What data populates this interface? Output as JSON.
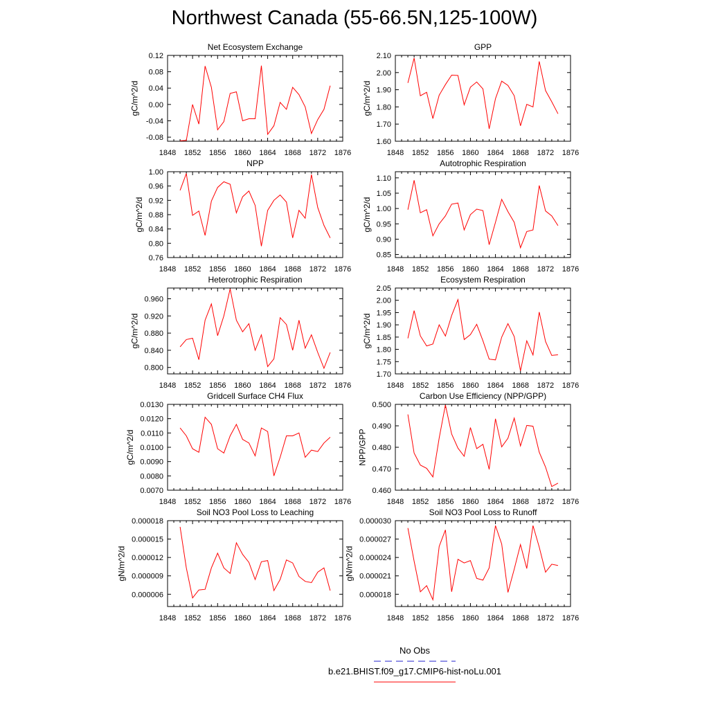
{
  "figure": {
    "title": "Northwest Canada (55-66.5N,125-100W)",
    "legend": [
      {
        "label": "No Obs",
        "color": "#2222cc",
        "dashed": true
      },
      {
        "label": "b.e21.BHIST.f09_g17.CMIP6-hist-noLu.001",
        "color": "#ff0000",
        "dashed": false
      }
    ]
  },
  "chart_data": [
    {
      "type": "line",
      "title": "Net Ecosystem Exchange",
      "ylabel": "gC/m^2/d",
      "xlim": [
        1848,
        1876
      ],
      "xticks": [
        "1848",
        "1852",
        "1856",
        "1860",
        "1864",
        "1868",
        "1872",
        "1876"
      ],
      "ylim": [
        -0.09,
        0.12
      ],
      "yticks": [
        "-0.08",
        "-0.04",
        "0.00",
        "0.04",
        "0.08",
        "0.12"
      ],
      "series": [
        {
          "color": "#ff0000",
          "x": [
            1850,
            1851,
            1852,
            1853,
            1854,
            1855,
            1856,
            1857,
            1858,
            1859,
            1860,
            1861,
            1862,
            1863,
            1864,
            1865,
            1866,
            1867,
            1868,
            1869,
            1870,
            1871,
            1872,
            1873,
            1874
          ],
          "y": [
            -0.089,
            -0.088,
            0.0,
            -0.048,
            0.094,
            0.042,
            -0.062,
            -0.042,
            0.027,
            0.031,
            -0.04,
            -0.035,
            -0.035,
            0.095,
            -0.073,
            -0.052,
            0.005,
            -0.012,
            0.042,
            0.024,
            -0.006,
            -0.071,
            -0.037,
            -0.012,
            0.046
          ]
        }
      ]
    },
    {
      "type": "line",
      "title": "GPP",
      "ylabel": "gC/m^2/d",
      "xlim": [
        1848,
        1876
      ],
      "xticks": [
        "1848",
        "1852",
        "1856",
        "1860",
        "1864",
        "1868",
        "1872",
        "1876"
      ],
      "ylim": [
        1.6,
        2.1
      ],
      "yticks": [
        "1.60",
        "1.70",
        "1.80",
        "1.90",
        "2.00",
        "2.10"
      ],
      "series": [
        {
          "color": "#ff0000",
          "x": [
            1850,
            1851,
            1852,
            1853,
            1854,
            1855,
            1856,
            1857,
            1858,
            1859,
            1860,
            1861,
            1862,
            1863,
            1864,
            1865,
            1866,
            1867,
            1868,
            1869,
            1870,
            1871,
            1872,
            1873,
            1874
          ],
          "y": [
            1.94,
            2.085,
            1.865,
            1.885,
            1.732,
            1.868,
            1.93,
            1.985,
            1.983,
            1.812,
            1.915,
            1.945,
            1.905,
            1.672,
            1.848,
            1.95,
            1.925,
            1.865,
            1.69,
            1.815,
            1.8,
            2.065,
            1.895,
            1.83,
            1.76
          ]
        }
      ]
    },
    {
      "type": "line",
      "title": "NPP",
      "ylabel": "gC/m^2/d",
      "xlim": [
        1848,
        1876
      ],
      "xticks": [
        "1848",
        "1852",
        "1856",
        "1860",
        "1864",
        "1868",
        "1872",
        "1876"
      ],
      "ylim": [
        0.76,
        1.0
      ],
      "yticks": [
        "0.76",
        "0.80",
        "0.84",
        "0.88",
        "0.92",
        "0.96",
        "1.00"
      ],
      "series": [
        {
          "color": "#ff0000",
          "x": [
            1850,
            1851,
            1852,
            1853,
            1854,
            1855,
            1856,
            1857,
            1858,
            1859,
            1860,
            1861,
            1862,
            1863,
            1864,
            1865,
            1866,
            1867,
            1868,
            1869,
            1870,
            1871,
            1872,
            1873,
            1874
          ],
          "y": [
            0.948,
            0.995,
            0.878,
            0.89,
            0.822,
            0.918,
            0.956,
            0.972,
            0.965,
            0.885,
            0.93,
            0.946,
            0.906,
            0.792,
            0.892,
            0.92,
            0.935,
            0.915,
            0.815,
            0.892,
            0.87,
            0.992,
            0.9,
            0.85,
            0.815
          ]
        }
      ]
    },
    {
      "type": "line",
      "title": "Autotrophic Respiration",
      "ylabel": "gC/m^2/d",
      "xlim": [
        1848,
        1876
      ],
      "xticks": [
        "1848",
        "1852",
        "1856",
        "1860",
        "1864",
        "1868",
        "1872",
        "1876"
      ],
      "ylim": [
        0.84,
        1.12
      ],
      "yticks": [
        "0.85",
        "0.90",
        "0.95",
        "1.00",
        "1.05",
        "1.10"
      ],
      "series": [
        {
          "color": "#ff0000",
          "x": [
            1850,
            1851,
            1852,
            1853,
            1854,
            1855,
            1856,
            1857,
            1858,
            1859,
            1860,
            1861,
            1862,
            1863,
            1864,
            1865,
            1866,
            1867,
            1868,
            1869,
            1870,
            1871,
            1872,
            1873,
            1874
          ],
          "y": [
            0.996,
            1.092,
            0.986,
            0.996,
            0.911,
            0.95,
            0.976,
            1.014,
            1.018,
            0.93,
            0.98,
            0.998,
            0.993,
            0.882,
            0.955,
            1.03,
            0.99,
            0.955,
            0.872,
            0.925,
            0.93,
            1.075,
            0.992,
            0.976,
            0.944
          ]
        }
      ]
    },
    {
      "type": "line",
      "title": "Heterotrophic Respiration",
      "ylabel": "gC/m^2/d",
      "xlim": [
        1848,
        1876
      ],
      "xticks": [
        "1848",
        "1852",
        "1856",
        "1860",
        "1864",
        "1868",
        "1872",
        "1876"
      ],
      "ylim": [
        0.785,
        0.985
      ],
      "yticks": [
        "0.800",
        "0.840",
        "0.880",
        "0.920",
        "0.960"
      ],
      "series": [
        {
          "color": "#ff0000",
          "x": [
            1850,
            1851,
            1852,
            1853,
            1854,
            1855,
            1856,
            1857,
            1858,
            1859,
            1860,
            1861,
            1862,
            1863,
            1864,
            1865,
            1866,
            1867,
            1868,
            1869,
            1870,
            1871,
            1872,
            1873,
            1874
          ],
          "y": [
            0.848,
            0.865,
            0.868,
            0.818,
            0.91,
            0.948,
            0.874,
            0.92,
            0.983,
            0.91,
            0.883,
            0.902,
            0.84,
            0.876,
            0.802,
            0.82,
            0.916,
            0.9,
            0.84,
            0.91,
            0.845,
            0.876,
            0.835,
            0.798,
            0.835
          ]
        }
      ]
    },
    {
      "type": "line",
      "title": "Ecosystem Respiration",
      "ylabel": "gC/m^2/d",
      "xlim": [
        1848,
        1876
      ],
      "xticks": [
        "1848",
        "1852",
        "1856",
        "1860",
        "1864",
        "1868",
        "1872",
        "1876"
      ],
      "ylim": [
        1.7,
        2.05
      ],
      "yticks": [
        "1.70",
        "1.75",
        "1.80",
        "1.85",
        "1.90",
        "1.95",
        "2.00",
        "2.05"
      ],
      "series": [
        {
          "color": "#ff0000",
          "x": [
            1850,
            1851,
            1852,
            1853,
            1854,
            1855,
            1856,
            1857,
            1858,
            1859,
            1860,
            1861,
            1862,
            1863,
            1864,
            1865,
            1866,
            1867,
            1868,
            1869,
            1870,
            1871,
            1872,
            1873,
            1874
          ],
          "y": [
            1.845,
            1.958,
            1.855,
            1.814,
            1.822,
            1.9,
            1.854,
            1.938,
            2.003,
            1.84,
            1.86,
            1.902,
            1.835,
            1.76,
            1.757,
            1.85,
            1.905,
            1.852,
            1.712,
            1.835,
            1.777,
            1.952,
            1.832,
            1.775,
            1.778
          ]
        }
      ]
    },
    {
      "type": "line",
      "title": "Gridcell Surface CH4 Flux",
      "ylabel": "gC/m^2/d",
      "xlim": [
        1848,
        1876
      ],
      "xticks": [
        "1848",
        "1852",
        "1856",
        "1860",
        "1864",
        "1868",
        "1872",
        "1876"
      ],
      "ylim": [
        0.007,
        0.013
      ],
      "yticks": [
        "0.0070",
        "0.0080",
        "0.0090",
        "0.0100",
        "0.0110",
        "0.0120",
        "0.0130"
      ],
      "series": [
        {
          "color": "#ff0000",
          "x": [
            1850,
            1851,
            1852,
            1853,
            1854,
            1855,
            1856,
            1857,
            1858,
            1859,
            1860,
            1861,
            1862,
            1863,
            1864,
            1865,
            1866,
            1867,
            1868,
            1869,
            1870,
            1871,
            1872,
            1873,
            1874
          ],
          "y": [
            0.01135,
            0.0108,
            0.0099,
            0.00965,
            0.0121,
            0.0116,
            0.0099,
            0.0096,
            0.0108,
            0.0116,
            0.01055,
            0.0103,
            0.0094,
            0.01135,
            0.0111,
            0.008,
            0.0093,
            0.0108,
            0.0108,
            0.011,
            0.0093,
            0.0098,
            0.0097,
            0.0103,
            0.0107
          ]
        }
      ]
    },
    {
      "type": "line",
      "title": "Carbon Use Efficiency (NPP/GPP)",
      "ylabel": "NPP/GPP",
      "xlim": [
        1848,
        1876
      ],
      "xticks": [
        "1848",
        "1852",
        "1856",
        "1860",
        "1864",
        "1868",
        "1872",
        "1876"
      ],
      "ylim": [
        0.46,
        0.5
      ],
      "yticks": [
        "0.460",
        "0.470",
        "0.480",
        "0.490",
        "0.500"
      ],
      "series": [
        {
          "color": "#ff0000",
          "x": [
            1850,
            1851,
            1852,
            1853,
            1854,
            1855,
            1856,
            1857,
            1858,
            1859,
            1860,
            1861,
            1862,
            1863,
            1864,
            1865,
            1866,
            1867,
            1868,
            1869,
            1870,
            1871,
            1872,
            1873,
            1874
          ],
          "y": [
            0.4953,
            0.4773,
            0.4717,
            0.4702,
            0.4662,
            0.4843,
            0.4997,
            0.4862,
            0.4796,
            0.4758,
            0.4892,
            0.4794,
            0.4814,
            0.4697,
            0.4933,
            0.4802,
            0.4842,
            0.4936,
            0.4806,
            0.4902,
            0.4898,
            0.4777,
            0.4708,
            0.4617,
            0.4633
          ]
        }
      ]
    },
    {
      "type": "line",
      "title": "Soil NO3 Pool Loss to Leaching",
      "ylabel": "gN/m^2/d",
      "xlim": [
        1848,
        1876
      ],
      "xticks": [
        "1848",
        "1852",
        "1856",
        "1860",
        "1864",
        "1868",
        "1872",
        "1876"
      ],
      "ylim": [
        4e-06,
        1.8e-05
      ],
      "yticks": [
        "0.000006",
        "0.000009",
        "0.000012",
        "0.000015",
        "0.000018"
      ],
      "series": [
        {
          "color": "#ff0000",
          "x": [
            1850,
            1851,
            1852,
            1853,
            1854,
            1855,
            1856,
            1857,
            1858,
            1859,
            1860,
            1861,
            1862,
            1863,
            1864,
            1865,
            1866,
            1867,
            1868,
            1869,
            1870,
            1871,
            1872,
            1873,
            1874
          ],
          "y": [
            1.7e-05,
            1.03e-05,
            5.4e-06,
            6.7e-06,
            6.8e-06,
            1.03e-05,
            1.27e-05,
            1.03e-05,
            9.4e-06,
            1.44e-05,
            1.25e-05,
            1.12e-05,
            8.4e-06,
            1.13e-05,
            1.15e-05,
            6.6e-06,
            8.4e-06,
            1.16e-05,
            1.11e-05,
            8.9e-06,
            8.1e-06,
            7.9e-06,
            9.6e-06,
            1.03e-05,
            6.6e-06
          ]
        }
      ]
    },
    {
      "type": "line",
      "title": "Soil NO3 Pool Loss to Runoff",
      "ylabel": "gN/m^2/d",
      "xlim": [
        1848,
        1876
      ],
      "xticks": [
        "1848",
        "1852",
        "1856",
        "1860",
        "1864",
        "1868",
        "1872",
        "1876"
      ],
      "ylim": [
        1.6e-05,
        3e-05
      ],
      "yticks": [
        "0.000018",
        "0.000021",
        "0.000024",
        "0.000027",
        "0.000030"
      ],
      "series": [
        {
          "color": "#ff0000",
          "x": [
            1850,
            1851,
            1852,
            1853,
            1854,
            1855,
            1856,
            1857,
            1858,
            1859,
            1860,
            1861,
            1862,
            1863,
            1864,
            1865,
            1866,
            1867,
            1868,
            1869,
            1870,
            1871,
            1872,
            1873,
            1874
          ],
          "y": [
            2.88e-05,
            2.34e-05,
            1.84e-05,
            1.94e-05,
            1.71e-05,
            2.58e-05,
            2.85e-05,
            1.84e-05,
            2.37e-05,
            2.31e-05,
            2.35e-05,
            2.06e-05,
            2.03e-05,
            2.23e-05,
            2.92e-05,
            2.62e-05,
            1.83e-05,
            2.21e-05,
            2.61e-05,
            2.22e-05,
            2.92e-05,
            2.57e-05,
            2.16e-05,
            2.29e-05,
            2.27e-05
          ]
        }
      ]
    }
  ]
}
